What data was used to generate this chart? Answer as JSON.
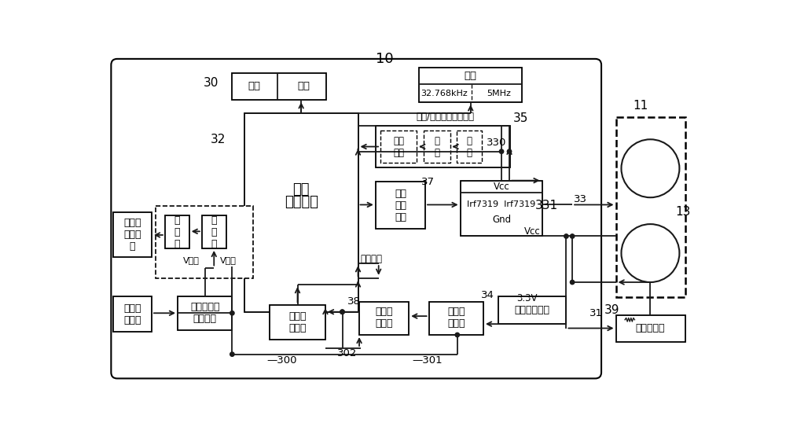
{
  "bg_color": "#ffffff",
  "line_color": "#1a1a1a",
  "label_10": "10",
  "label_11": "11",
  "label_13": "13",
  "label_30": "30",
  "label_31": "31",
  "label_32": "32",
  "label_33": "33",
  "label_34": "34",
  "label_35": "35",
  "label_37": "37",
  "label_38": "38",
  "label_39": "39",
  "label_300": "—300",
  "label_301": "—301",
  "label_302": "302",
  "label_330": "330",
  "label_331": "331",
  "box_display": "显示",
  "box_keys": "按键",
  "box_crystal": "晶体",
  "box_crystal_sub1": "32.768kHz",
  "box_crystal_sub2": "5MHz",
  "box_mcu_line1": "第一",
  "box_mcu_line2": "微处理器",
  "box_battery": "体外可\n充电电\n池",
  "box_fuse": "保\n险\n丝",
  "box_diode": "二\n极\n管",
  "box_charger": "体外电池充\n电供电器",
  "box_ext_power": "外部交\n流电源",
  "box_drive": "驱动\n放大\n电路",
  "box_pulse": "脉宽\n拓展",
  "box_shape": "整\n形",
  "box_filter": "滤\n波",
  "box_mosfet_vcc": "Vcc",
  "box_mosfet_fets": "Irf7319  Irf7319",
  "box_mosfet_gnd": "Gnd",
  "box_voltage": "电压采\n样电路",
  "box_current": "电流采\n样电路",
  "box_power_conv": "电源变换电路",
  "box_charge_sw": "充电保\n护开关",
  "box_temp_sensor": "温度传感器",
  "text_comm_signal": "通信/充电切换控制信号",
  "text_vcharge": "V充电",
  "text_vsupply": "V供电",
  "text_overtemp": "过温保护",
  "text_vcc": "Vcc",
  "text_3v3": "3.3V"
}
